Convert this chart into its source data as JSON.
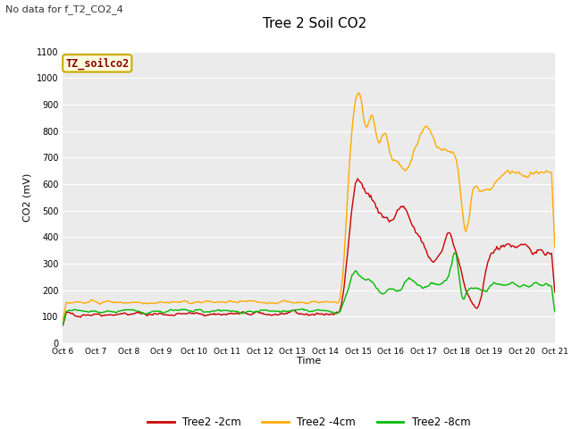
{
  "title": "Tree 2 Soil CO2",
  "subtitle": "No data for f_T2_CO2_4",
  "ylabel": "CO2 (mV)",
  "xlabel": "Time",
  "watermark": "TZ_soilco2",
  "ylim": [
    0,
    1100
  ],
  "yticks": [
    0,
    100,
    200,
    300,
    400,
    500,
    600,
    700,
    800,
    900,
    1000,
    1100
  ],
  "xtick_labels": [
    "Oct 6",
    "Oct 7",
    "Oct 8",
    "Oct 9",
    "Oct 10",
    "Oct 11",
    "Oct 12",
    "Oct 13",
    "Oct 14",
    "Oct 15",
    "Oct 16",
    "Oct 17",
    "Oct 18",
    "Oct 19",
    "Oct 20",
    "Oct 21"
  ],
  "colors": {
    "red": "#cc0000",
    "orange": "#ffaa00",
    "green": "#00bb00",
    "plot_bg": "#ebebeb",
    "grid": "#ffffff"
  },
  "legend_labels": [
    "Tree2 -2cm",
    "Tree2 -4cm",
    "Tree2 -8cm"
  ]
}
